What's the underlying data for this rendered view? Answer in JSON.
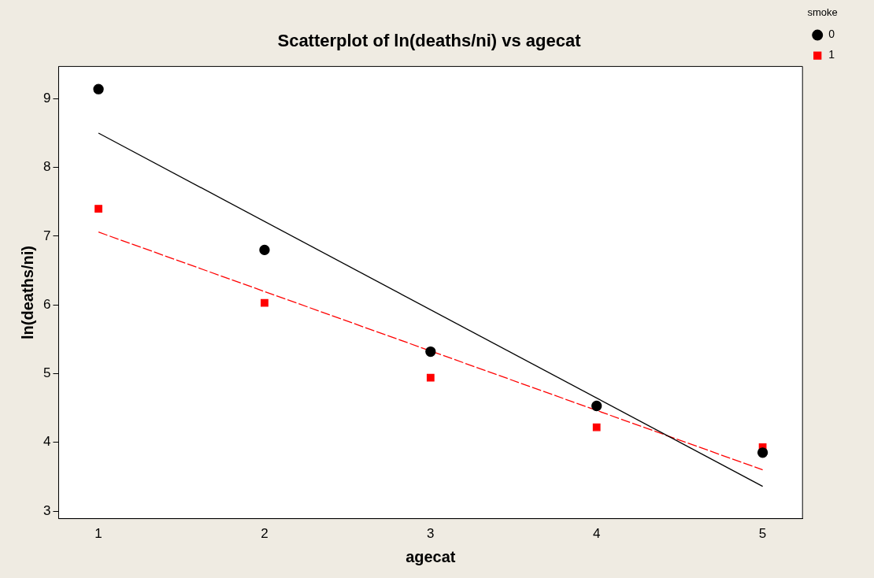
{
  "chart_data": {
    "type": "scatter",
    "title": "Scatterplot of ln(deaths/ni) vs agecat",
    "xlabel": "agecat",
    "ylabel": "ln(deaths/ni)",
    "legend_title": "smoke",
    "xlim": [
      0.76,
      5.24
    ],
    "xticks": [
      1,
      2,
      3,
      4,
      5
    ],
    "ylim": [
      2.89,
      9.47
    ],
    "yticks": [
      3,
      4,
      5,
      6,
      7,
      8,
      9
    ],
    "grid": false,
    "legend": "right",
    "series": [
      {
        "name": "0",
        "marker": "circle",
        "color": "#000000",
        "x": [
          1,
          2,
          3,
          4,
          5
        ],
        "values": [
          9.14,
          6.8,
          5.32,
          4.53,
          3.85
        ]
      },
      {
        "name": "1",
        "marker": "square",
        "color": "#ff0000",
        "x": [
          1,
          2,
          3,
          4,
          5
        ],
        "values": [
          7.4,
          6.03,
          4.94,
          4.22,
          3.93
        ]
      },
      {
        "type": "line",
        "marker": "none",
        "line_style": "solid",
        "color": "#000000",
        "x": [
          1,
          5
        ],
        "values": [
          8.5,
          3.36
        ]
      },
      {
        "type": "line",
        "marker": "none",
        "line_style": "dashed",
        "color": "#ff0000",
        "x": [
          1,
          5
        ],
        "values": [
          7.06,
          3.6
        ]
      }
    ]
  }
}
